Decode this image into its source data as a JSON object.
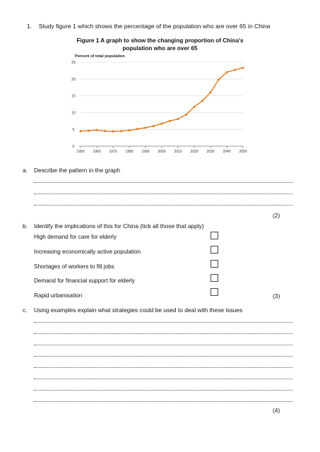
{
  "q1": {
    "number": "1.",
    "text": "Study figure 1 which shows the percentage of the population who are over 65 in China"
  },
  "figure": {
    "title_line1": "Figure 1 A graph to show the changing proportion of China's",
    "title_line2": "population who are over 65"
  },
  "chart_data": {
    "type": "line",
    "ylabel": "Percent of total population",
    "xlabel": "",
    "ylim": [
      0,
      25
    ],
    "yticks": [
      0,
      5,
      10,
      15,
      20,
      25
    ],
    "xticks": [
      1950,
      1960,
      1970,
      1980,
      1990,
      2000,
      2010,
      2020,
      2030,
      2040,
      2050
    ],
    "xlim": [
      1950,
      2050
    ],
    "grid": true,
    "series_color": "#e07b1f",
    "x": [
      1950,
      1955,
      1960,
      1965,
      1970,
      1975,
      1980,
      1985,
      1990,
      1995,
      2000,
      2005,
      2010,
      2015,
      2020,
      2025,
      2030,
      2035,
      2040,
      2045,
      2050
    ],
    "y": [
      4.5,
      4.6,
      4.8,
      4.5,
      4.4,
      4.5,
      4.7,
      5.1,
      5.5,
      6.0,
      6.7,
      7.5,
      8.1,
      9.4,
      11.7,
      13.5,
      16.0,
      19.8,
      22.0,
      22.7,
      23.3
    ]
  },
  "qa": {
    "letter": "a.",
    "text": "Describe the pattern in the graph",
    "marks": "(2)"
  },
  "qb": {
    "letter": "b.",
    "text": "Identify the implications of this for China (tick all those that apply)",
    "options": [
      "High demand for care for elderly",
      "Increasing economically active population",
      "Shortages of workers to fill jobs",
      "Demand for financial support for elderly",
      "Rapid urbanisation"
    ],
    "marks": "(3)"
  },
  "qc": {
    "letter": "c.",
    "text": "Using examples explain what strategies could be used to deal with these issues",
    "marks": "(4)"
  }
}
